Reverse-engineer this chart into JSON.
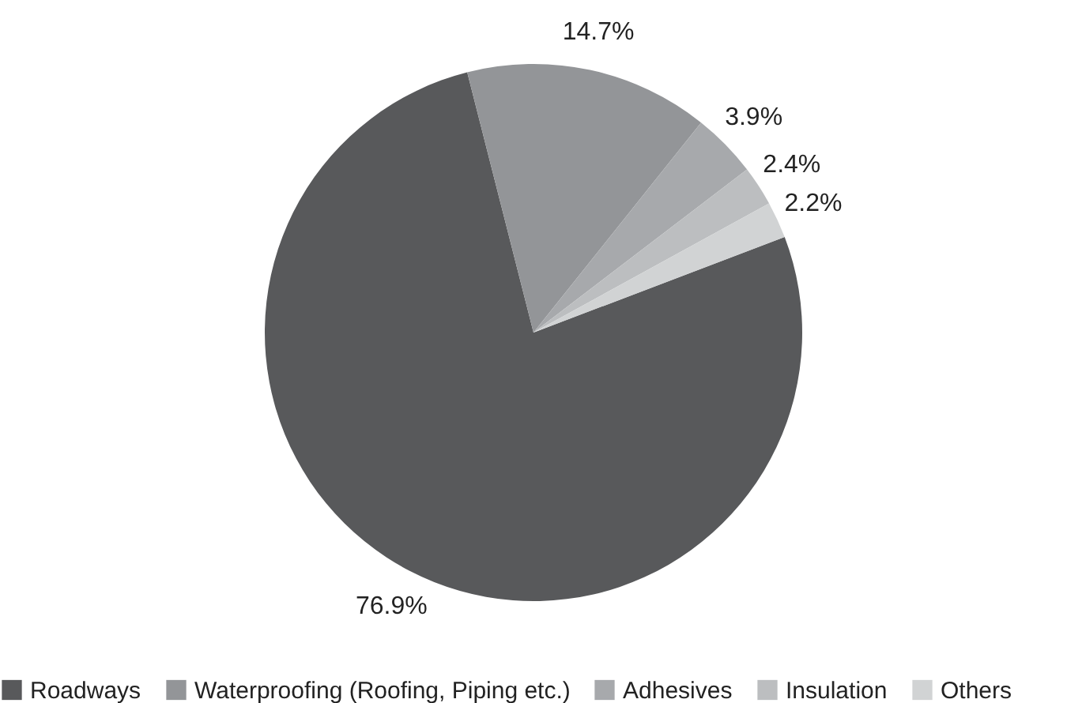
{
  "chart_data": {
    "type": "pie",
    "categories": [
      "Roadways",
      "Waterproofing (Roofing, Piping etc.)",
      "Adhesives",
      "Insulation",
      "Others"
    ],
    "values": [
      76.9,
      14.7,
      3.9,
      2.4,
      2.2
    ],
    "colors": [
      "#58595b",
      "#939598",
      "#a7a9ac",
      "#bcbec0",
      "#d1d3d4"
    ],
    "value_labels": [
      "76.9%",
      "14.7%",
      "3.9%",
      "2.4%",
      "2.2%"
    ],
    "legend": "bottom"
  }
}
